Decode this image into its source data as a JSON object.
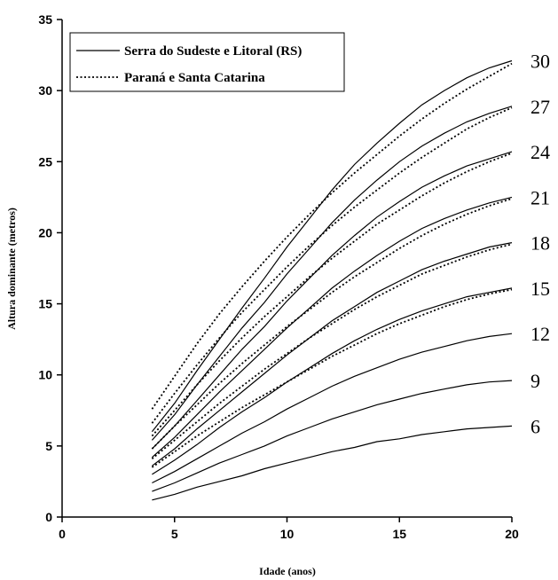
{
  "chart_data": {
    "type": "line",
    "xlabel": "Idade (anos)",
    "ylabel": "Altura dominante (metros)",
    "xlim": [
      0,
      20
    ],
    "ylim": [
      0,
      35
    ],
    "xticks": [
      0,
      5,
      10,
      15,
      20
    ],
    "yticks": [
      0,
      5,
      10,
      15,
      20,
      25,
      30,
      35
    ],
    "grid": false,
    "legend_placement": "top-left",
    "legend": [
      {
        "label": "Serra do Sudeste e Litoral (RS)",
        "style": "solid"
      },
      {
        "label": "Paraná e Santa Catarina",
        "style": "dotted"
      }
    ],
    "site_index_labels": [
      {
        "text": "30",
        "y": 32.1
      },
      {
        "text": "27",
        "y": 28.9
      },
      {
        "text": "24",
        "y": 25.7
      },
      {
        "text": "21",
        "y": 22.5
      },
      {
        "text": "18",
        "y": 19.3
      },
      {
        "text": "15",
        "y": 16.1
      },
      {
        "text": "12",
        "y": 12.9
      },
      {
        "text": "9",
        "y": 9.6
      },
      {
        "text": "6",
        "y": 6.4
      }
    ],
    "x": [
      4,
      5,
      6,
      7,
      8,
      9,
      10,
      11,
      12,
      13,
      14,
      15,
      16,
      17,
      18,
      19,
      20
    ],
    "series": [
      {
        "group": "Serra do Sudeste e Litoral (RS)",
        "style": "solid",
        "values": [
          6.0,
          8.0,
          10.3,
          12.5,
          14.7,
          16.8,
          19.0,
          21.0,
          23.0,
          24.8,
          26.3,
          27.7,
          29.0,
          30.0,
          30.9,
          31.6,
          32.1
        ]
      },
      {
        "group": "Serra do Sudeste e Litoral (RS)",
        "style": "solid",
        "values": [
          5.4,
          7.2,
          9.3,
          11.3,
          13.3,
          15.1,
          17.1,
          18.9,
          20.7,
          22.3,
          23.7,
          25.0,
          26.1,
          27.0,
          27.8,
          28.4,
          28.9
        ]
      },
      {
        "group": "Serra do Sudeste e Litoral (RS)",
        "style": "solid",
        "values": [
          4.8,
          6.4,
          8.2,
          10.0,
          11.8,
          13.4,
          15.2,
          16.8,
          18.4,
          19.8,
          21.1,
          22.2,
          23.2,
          24.0,
          24.7,
          25.2,
          25.7
        ]
      },
      {
        "group": "Serra do Sudeste e Litoral (RS)",
        "style": "solid",
        "values": [
          4.2,
          5.6,
          7.2,
          8.8,
          10.3,
          11.8,
          13.3,
          14.7,
          16.1,
          17.3,
          18.4,
          19.4,
          20.3,
          21.0,
          21.6,
          22.1,
          22.5
        ]
      },
      {
        "group": "Serra do Sudeste e Litoral (RS)",
        "style": "solid",
        "values": [
          3.6,
          4.8,
          6.2,
          7.5,
          8.8,
          10.1,
          11.4,
          12.6,
          13.8,
          14.8,
          15.8,
          16.6,
          17.4,
          18.0,
          18.5,
          19.0,
          19.3
        ]
      },
      {
        "group": "Serra do Sudeste e Litoral (RS)",
        "style": "solid",
        "values": [
          3.0,
          4.0,
          5.1,
          6.3,
          7.4,
          8.4,
          9.5,
          10.5,
          11.5,
          12.4,
          13.2,
          13.9,
          14.5,
          15.0,
          15.5,
          15.8,
          16.1
        ]
      },
      {
        "group": "Serra do Sudeste e Litoral (RS)",
        "style": "solid",
        "values": [
          2.4,
          3.2,
          4.1,
          5.0,
          5.9,
          6.7,
          7.6,
          8.4,
          9.2,
          9.9,
          10.5,
          11.1,
          11.6,
          12.0,
          12.4,
          12.7,
          12.9
        ]
      },
      {
        "group": "Serra do Sudeste e Litoral (RS)",
        "style": "solid",
        "values": [
          1.8,
          2.4,
          3.1,
          3.8,
          4.4,
          5.0,
          5.7,
          6.3,
          6.9,
          7.4,
          7.9,
          8.3,
          8.7,
          9.0,
          9.3,
          9.5,
          9.6
        ]
      },
      {
        "group": "Serra do Sudeste e Litoral (RS)",
        "style": "solid",
        "values": [
          1.2,
          1.6,
          2.1,
          2.5,
          2.9,
          3.4,
          3.8,
          4.2,
          4.6,
          4.9,
          5.3,
          5.5,
          5.8,
          6.0,
          6.2,
          6.3,
          6.4
        ]
      },
      {
        "group": "Paraná e Santa Catarina",
        "style": "dotted",
        "values": [
          7.6,
          9.9,
          12.2,
          14.3,
          16.2,
          18.0,
          19.7,
          21.3,
          22.8,
          24.2,
          25.5,
          26.8,
          28.0,
          29.1,
          30.1,
          31.0,
          31.9
        ]
      },
      {
        "group": "Paraná e Santa Catarina",
        "style": "dotted",
        "values": [
          6.6,
          8.7,
          10.7,
          12.6,
          14.4,
          16.0,
          17.6,
          19.1,
          20.5,
          21.8,
          23.0,
          24.2,
          25.3,
          26.3,
          27.3,
          28.1,
          28.8
        ]
      },
      {
        "group": "Paraná e Santa Catarina",
        "style": "dotted",
        "values": [
          5.7,
          7.5,
          9.3,
          11.0,
          12.6,
          14.1,
          15.5,
          16.9,
          18.2,
          19.4,
          20.6,
          21.6,
          22.6,
          23.5,
          24.3,
          25.0,
          25.6
        ]
      },
      {
        "group": "Paraná e Santa Catarina",
        "style": "dotted",
        "values": [
          4.8,
          6.4,
          7.9,
          9.4,
          10.8,
          12.1,
          13.4,
          14.6,
          15.8,
          16.9,
          17.9,
          18.9,
          19.8,
          20.6,
          21.3,
          21.9,
          22.4
        ]
      },
      {
        "group": "Paraná e Santa Catarina",
        "style": "dotted",
        "values": [
          4.1,
          5.4,
          6.7,
          8.0,
          9.2,
          10.4,
          11.5,
          12.6,
          13.6,
          14.6,
          15.5,
          16.3,
          17.1,
          17.7,
          18.3,
          18.8,
          19.2
        ]
      },
      {
        "group": "Paraná e Santa Catarina",
        "style": "dotted",
        "values": [
          3.5,
          4.6,
          5.7,
          6.7,
          7.7,
          8.6,
          9.5,
          10.4,
          11.3,
          12.1,
          12.9,
          13.6,
          14.2,
          14.8,
          15.3,
          15.7,
          16.0
        ]
      }
    ]
  }
}
